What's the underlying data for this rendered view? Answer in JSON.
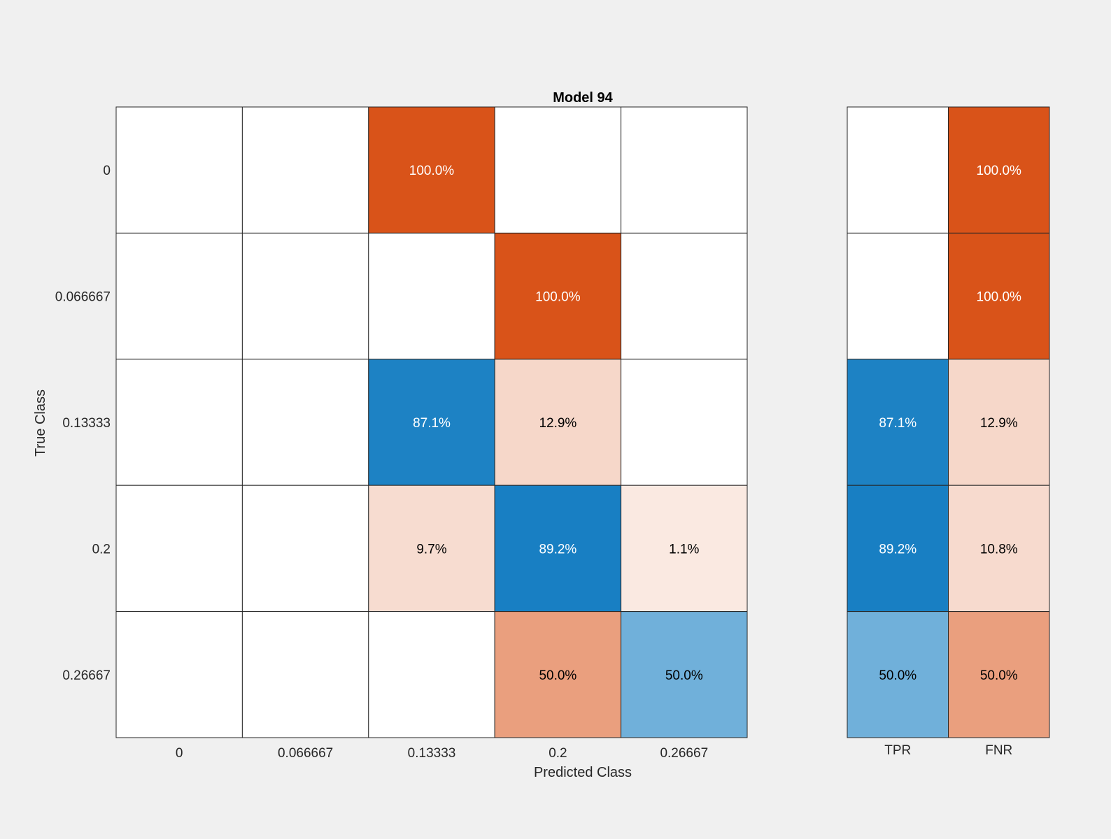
{
  "chart_data": {
    "type": "heatmap",
    "title": "Model 94",
    "xlabel": "Predicted Class",
    "ylabel": "True Class",
    "row_labels": [
      "0",
      "0.066667",
      "0.13333",
      "0.2",
      "0.26667"
    ],
    "col_labels": [
      "0",
      "0.066667",
      "0.13333",
      "0.2",
      "0.26667"
    ],
    "summary_col_labels": [
      "TPR",
      "FNR"
    ],
    "matrix": [
      [
        null,
        null,
        100.0,
        null,
        null
      ],
      [
        null,
        null,
        null,
        100.0,
        null
      ],
      [
        null,
        null,
        87.1,
        12.9,
        null
      ],
      [
        null,
        null,
        9.7,
        89.2,
        1.1
      ],
      [
        null,
        null,
        null,
        50.0,
        50.0
      ]
    ],
    "summary": [
      [
        null,
        100.0
      ],
      [
        null,
        100.0
      ],
      [
        87.1,
        12.9
      ],
      [
        89.2,
        10.8
      ],
      [
        50.0,
        50.0
      ]
    ],
    "value_format": "percent_1dp",
    "colors": {
      "correct": "#0072bd",
      "incorrect": "#d95319",
      "empty": "#ffffff",
      "grid": "#262626",
      "background": "#f0f0f0"
    }
  }
}
